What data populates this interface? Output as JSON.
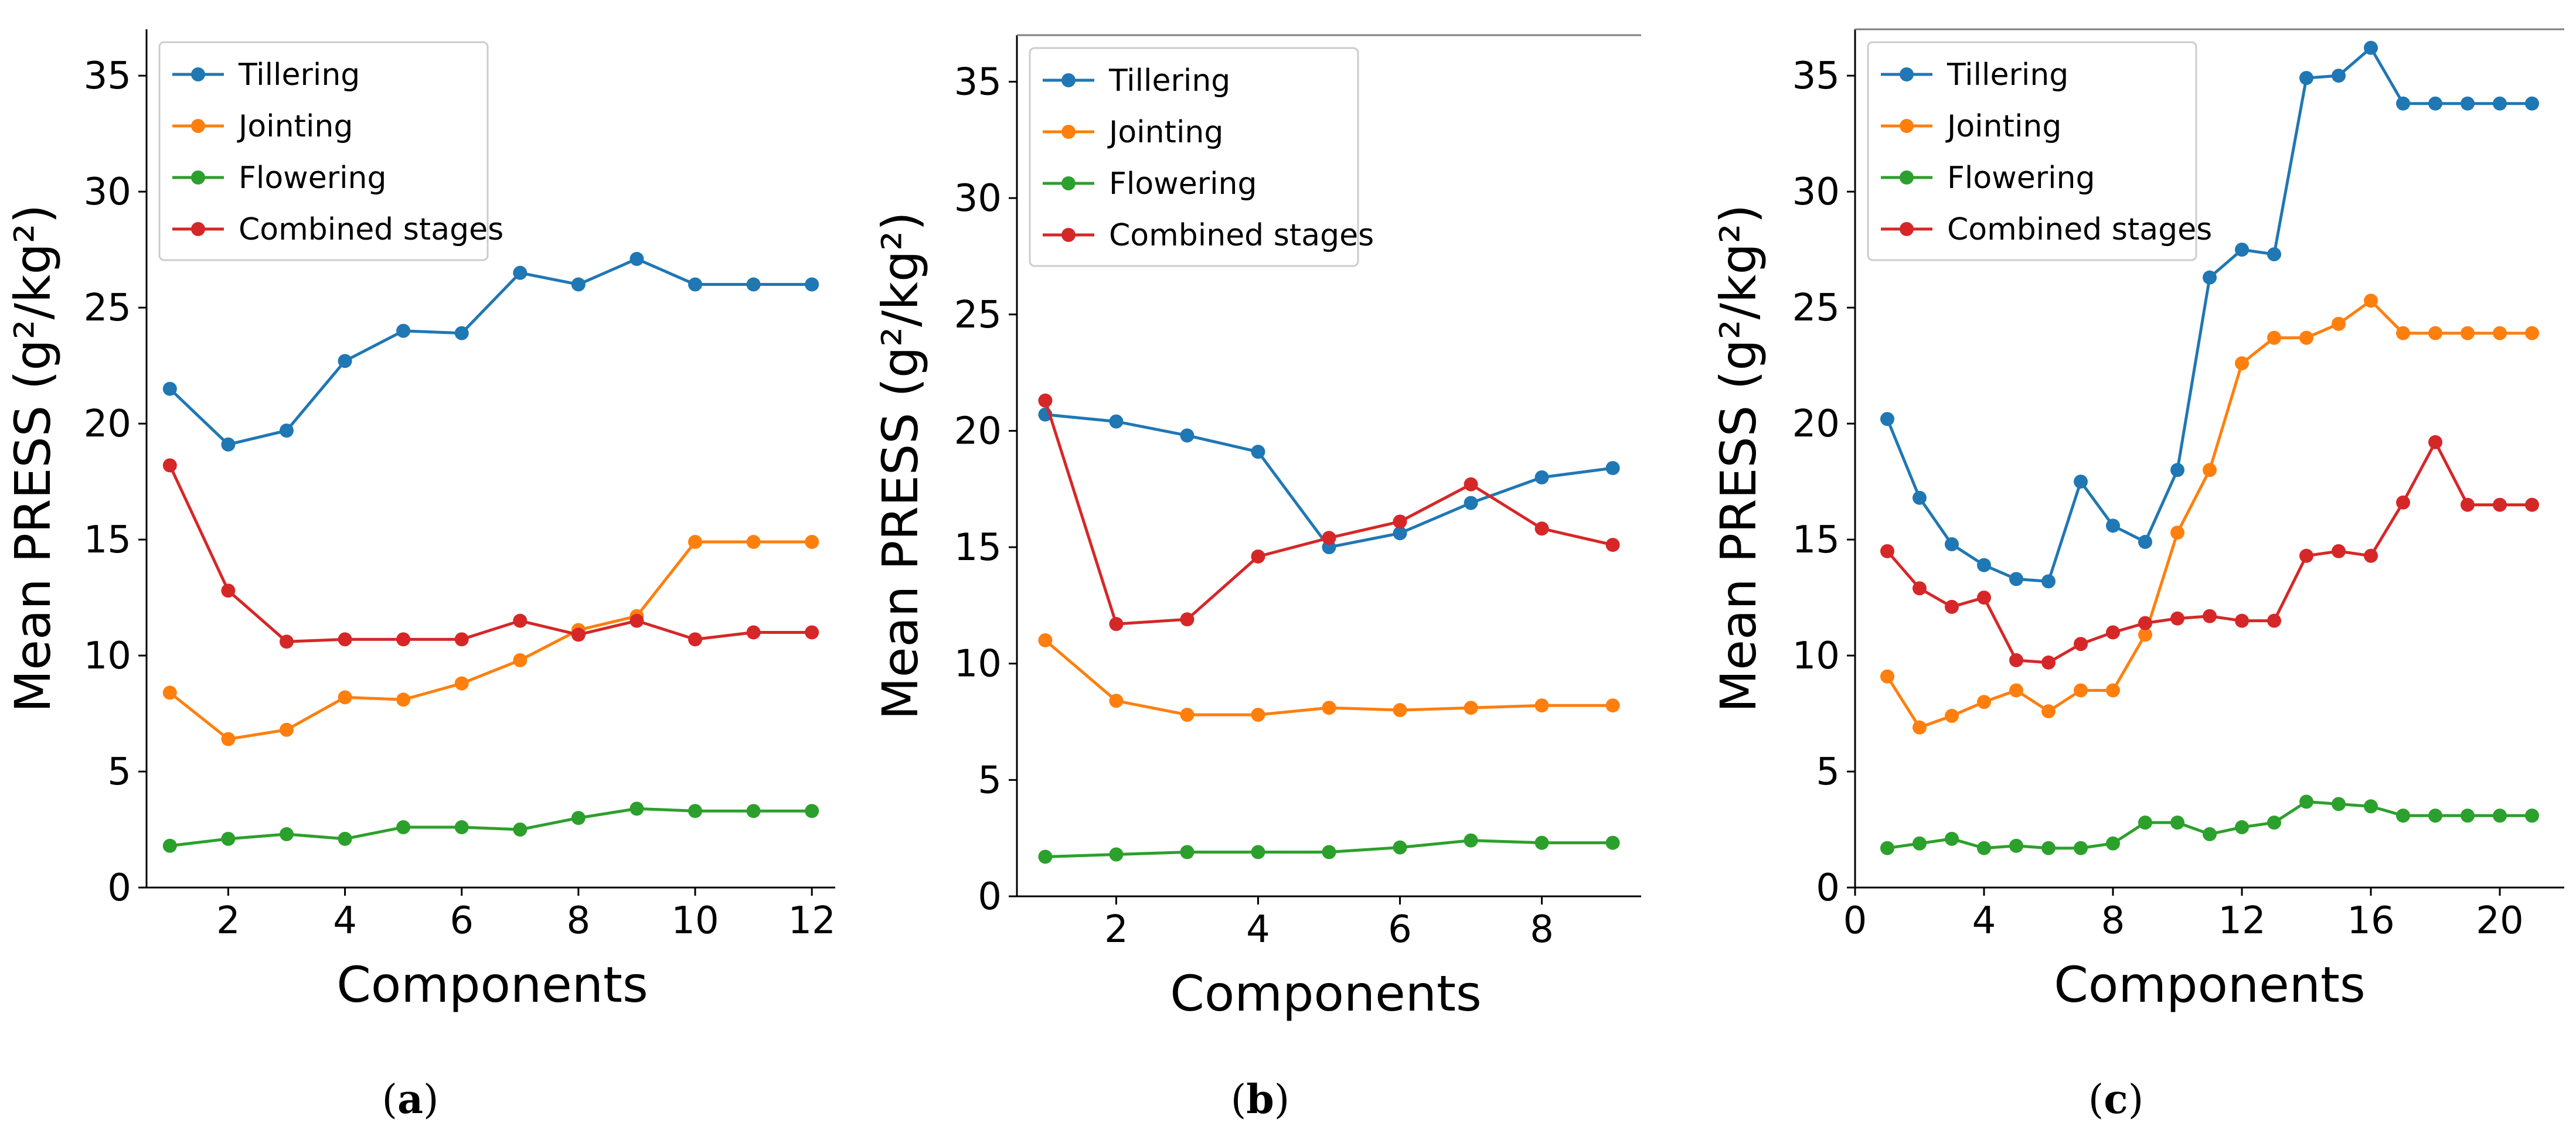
{
  "colors": {
    "Tillering": "#1f77b4",
    "Jointing": "#ff7f0e",
    "Flowering": "#2ca02c",
    "Combined stages": "#d62728"
  },
  "chart_data": [
    {
      "type": "line",
      "panel_label": "a",
      "xlabel": "Components",
      "ylabel": "Mean PRESS (g²/kg²)",
      "xlim": [
        0.6,
        12.4
      ],
      "ylim": [
        0,
        37
      ],
      "xticks": [
        2,
        4,
        6,
        8,
        10,
        12
      ],
      "yticks": [
        0,
        5,
        10,
        15,
        20,
        25,
        30,
        35
      ],
      "legend_position": "top-left",
      "x": [
        1,
        2,
        3,
        4,
        5,
        6,
        7,
        8,
        9,
        10,
        11,
        12
      ],
      "series": [
        {
          "name": "Tillering",
          "values": [
            21.5,
            19.1,
            19.7,
            22.7,
            24.0,
            23.9,
            26.5,
            26.0,
            27.1,
            26.0,
            26.0,
            26.0
          ]
        },
        {
          "name": "Jointing",
          "values": [
            8.4,
            6.4,
            6.8,
            8.2,
            8.1,
            8.8,
            9.8,
            11.1,
            11.7,
            14.9,
            14.9,
            14.9
          ]
        },
        {
          "name": "Flowering",
          "values": [
            1.8,
            2.1,
            2.3,
            2.1,
            2.6,
            2.6,
            2.5,
            3.0,
            3.4,
            3.3,
            3.3,
            3.3
          ]
        },
        {
          "name": "Combined stages",
          "values": [
            18.2,
            12.8,
            10.6,
            10.7,
            10.7,
            10.7,
            11.5,
            10.9,
            11.5,
            10.7,
            11.0,
            11.0
          ]
        }
      ]
    },
    {
      "type": "line",
      "panel_label": "b",
      "xlabel": "Components",
      "ylabel": "Mean PRESS (g²/kg²)",
      "xlim": [
        0.6,
        9.4
      ],
      "ylim": [
        0,
        37
      ],
      "xticks": [
        2,
        4,
        6,
        8
      ],
      "yticks": [
        0,
        5,
        10,
        15,
        20,
        25,
        30,
        35
      ],
      "legend_position": "top-left",
      "x": [
        1,
        2,
        3,
        4,
        5,
        6,
        7,
        8,
        9
      ],
      "series": [
        {
          "name": "Tillering",
          "values": [
            20.7,
            20.4,
            19.8,
            19.1,
            15.0,
            15.6,
            16.9,
            18.0,
            18.4
          ]
        },
        {
          "name": "Jointing",
          "values": [
            11.0,
            8.4,
            7.8,
            7.8,
            8.1,
            8.0,
            8.1,
            8.2,
            8.2
          ]
        },
        {
          "name": "Flowering",
          "values": [
            1.7,
            1.8,
            1.9,
            1.9,
            1.9,
            2.1,
            2.4,
            2.3,
            2.3
          ]
        },
        {
          "name": "Combined stages",
          "values": [
            21.3,
            11.7,
            11.9,
            14.6,
            15.4,
            16.1,
            17.7,
            15.8,
            15.1
          ]
        }
      ]
    },
    {
      "type": "line",
      "panel_label": "c",
      "xlabel": "Components",
      "ylabel": "Mean PRESS (g²/kg²)",
      "xlim": [
        0,
        22
      ],
      "ylim": [
        0,
        37
      ],
      "xticks": [
        0,
        4,
        8,
        12,
        16,
        20
      ],
      "yticks": [
        0,
        5,
        10,
        15,
        20,
        25,
        30,
        35
      ],
      "legend_position": "top-left",
      "x": [
        1,
        2,
        3,
        4,
        5,
        6,
        7,
        8,
        9,
        10,
        11,
        12,
        13,
        14,
        15,
        16,
        17,
        18,
        19,
        20,
        21
      ],
      "series": [
        {
          "name": "Tillering",
          "values": [
            20.2,
            16.8,
            14.8,
            13.9,
            13.3,
            13.2,
            17.5,
            15.6,
            14.9,
            18.0,
            26.3,
            27.5,
            27.3,
            34.9,
            35.0,
            36.2,
            33.8,
            33.8,
            33.8,
            33.8,
            33.8
          ]
        },
        {
          "name": "Jointing",
          "values": [
            9.1,
            6.9,
            7.4,
            8.0,
            8.5,
            7.6,
            8.5,
            8.5,
            10.9,
            15.3,
            18.0,
            22.6,
            23.7,
            23.7,
            24.3,
            25.3,
            23.9,
            23.9,
            23.9,
            23.9,
            23.9
          ]
        },
        {
          "name": "Flowering",
          "values": [
            1.7,
            1.9,
            2.1,
            1.7,
            1.8,
            1.7,
            1.7,
            1.9,
            2.8,
            2.8,
            2.3,
            2.6,
            2.8,
            3.7,
            3.6,
            3.5,
            3.1,
            3.1,
            3.1,
            3.1,
            3.1
          ]
        },
        {
          "name": "Combined stages",
          "values": [
            14.5,
            12.9,
            12.1,
            12.5,
            9.8,
            9.7,
            10.5,
            11.0,
            11.4,
            11.6,
            11.7,
            11.5,
            11.5,
            14.3,
            14.5,
            14.3,
            16.6,
            19.2,
            16.5,
            16.5,
            16.5
          ]
        }
      ]
    }
  ]
}
